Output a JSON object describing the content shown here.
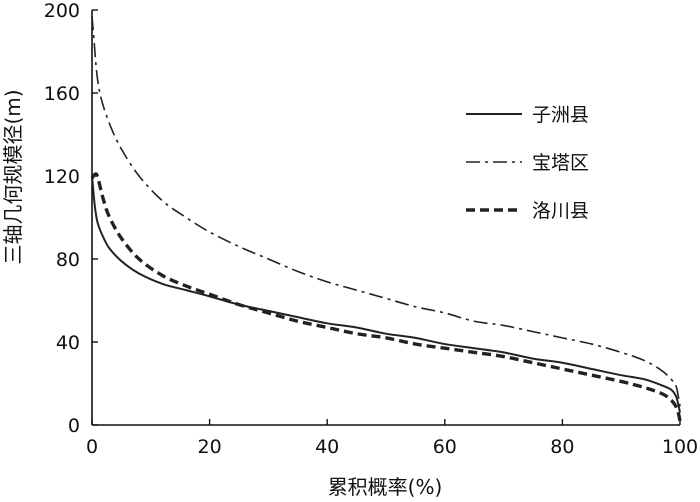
{
  "chart_data": {
    "type": "line",
    "xlabel": "累积概率(%)",
    "ylabel": "三轴几何规模径(m)",
    "xlim": [
      0,
      100
    ],
    "ylim": [
      0,
      200
    ],
    "x_ticks": [
      0,
      20,
      40,
      60,
      80,
      100
    ],
    "y_ticks": [
      0,
      40,
      80,
      120,
      160,
      200
    ],
    "grid": false,
    "legend_position": "top-right",
    "series": [
      {
        "name": "子洲县",
        "style": "solid",
        "color": "#222222",
        "points": [
          [
            0,
            120
          ],
          [
            0.5,
            105
          ],
          [
            1,
            97
          ],
          [
            2,
            90
          ],
          [
            3,
            85
          ],
          [
            5,
            79
          ],
          [
            8,
            73
          ],
          [
            12,
            68
          ],
          [
            16,
            65
          ],
          [
            20,
            62
          ],
          [
            25,
            58
          ],
          [
            30,
            55
          ],
          [
            35,
            52
          ],
          [
            40,
            49
          ],
          [
            45,
            47
          ],
          [
            50,
            44
          ],
          [
            55,
            42
          ],
          [
            60,
            39
          ],
          [
            65,
            37
          ],
          [
            70,
            35
          ],
          [
            75,
            32
          ],
          [
            80,
            30
          ],
          [
            85,
            27
          ],
          [
            90,
            24
          ],
          [
            94,
            22
          ],
          [
            97,
            19
          ],
          [
            98.5,
            17
          ],
          [
            99.3,
            14
          ],
          [
            99.7,
            10
          ],
          [
            100,
            6
          ]
        ]
      },
      {
        "name": "宝塔区",
        "style": "dashdot",
        "color": "#222222",
        "points": [
          [
            0,
            197
          ],
          [
            0.3,
            187
          ],
          [
            0.8,
            170
          ],
          [
            1.5,
            158
          ],
          [
            3,
            145
          ],
          [
            5,
            133
          ],
          [
            8,
            120
          ],
          [
            12,
            108
          ],
          [
            16,
            100
          ],
          [
            20,
            93
          ],
          [
            25,
            86
          ],
          [
            30,
            80
          ],
          [
            35,
            74
          ],
          [
            40,
            69
          ],
          [
            45,
            65
          ],
          [
            50,
            61
          ],
          [
            55,
            57
          ],
          [
            60,
            54
          ],
          [
            65,
            50
          ],
          [
            70,
            48
          ],
          [
            75,
            45
          ],
          [
            80,
            42
          ],
          [
            85,
            39
          ],
          [
            90,
            35
          ],
          [
            94,
            31
          ],
          [
            97,
            26
          ],
          [
            98.5,
            22
          ],
          [
            99.3,
            19
          ],
          [
            99.7,
            14
          ],
          [
            100,
            9
          ]
        ]
      },
      {
        "name": "洛川县",
        "style": "dashed",
        "color": "#222222",
        "points": [
          [
            0,
            119
          ],
          [
            0.6,
            121
          ],
          [
            1,
            119
          ],
          [
            2,
            108
          ],
          [
            3,
            100
          ],
          [
            5,
            90
          ],
          [
            8,
            80
          ],
          [
            12,
            72
          ],
          [
            16,
            67
          ],
          [
            20,
            63
          ],
          [
            25,
            58
          ],
          [
            30,
            54
          ],
          [
            35,
            50
          ],
          [
            40,
            47
          ],
          [
            45,
            44
          ],
          [
            50,
            42
          ],
          [
            55,
            39
          ],
          [
            60,
            37
          ],
          [
            65,
            35
          ],
          [
            70,
            33
          ],
          [
            75,
            30
          ],
          [
            80,
            27
          ],
          [
            85,
            24
          ],
          [
            90,
            21
          ],
          [
            94,
            18
          ],
          [
            97,
            15
          ],
          [
            98.5,
            12
          ],
          [
            99.3,
            9
          ],
          [
            99.7,
            6
          ],
          [
            100,
            2
          ]
        ]
      }
    ]
  }
}
